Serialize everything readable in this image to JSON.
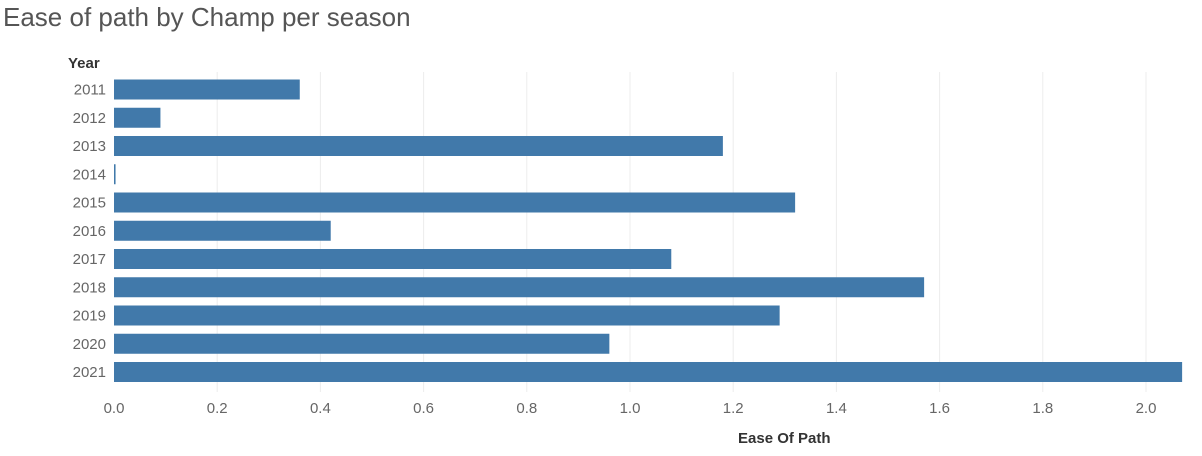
{
  "chart_data": {
    "type": "bar",
    "orientation": "horizontal",
    "title": "Ease of path by Champ per season",
    "xlabel": "Ease Of Path",
    "ylabel": "Year",
    "categories": [
      "2011",
      "2012",
      "2013",
      "2014",
      "2015",
      "2016",
      "2017",
      "2018",
      "2019",
      "2020",
      "2021"
    ],
    "values": [
      0.36,
      0.09,
      1.18,
      0.003,
      1.32,
      0.42,
      1.08,
      1.57,
      1.29,
      0.96,
      2.07
    ],
    "xlim": [
      0,
      2.07
    ],
    "x_ticks": [
      "0.0",
      "0.2",
      "0.4",
      "0.6",
      "0.8",
      "1.0",
      "1.2",
      "1.4",
      "1.6",
      "1.8",
      "2.0"
    ],
    "grid": "vertical",
    "colors": {
      "bar": "#4179aa",
      "grid": "#ececec"
    }
  }
}
